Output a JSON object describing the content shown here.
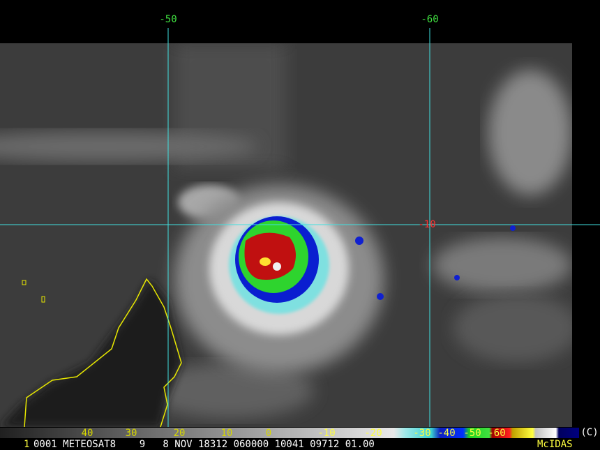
{
  "grid_labels": {
    "lon": [
      "-50",
      "-60"
    ],
    "lat": [
      "-10"
    ]
  },
  "color_bar": {
    "labels": [
      "40",
      "30",
      "20",
      "10",
      "0",
      "-10",
      "-20",
      "-30",
      "-40",
      "-50",
      "-60"
    ],
    "unit": "(C)"
  },
  "footer": {
    "frame": "1",
    "info": "0001 METEOSAT8    9   8 NOV 18312 060000 10041 09712 01.00",
    "producer": "McIDAS"
  }
}
